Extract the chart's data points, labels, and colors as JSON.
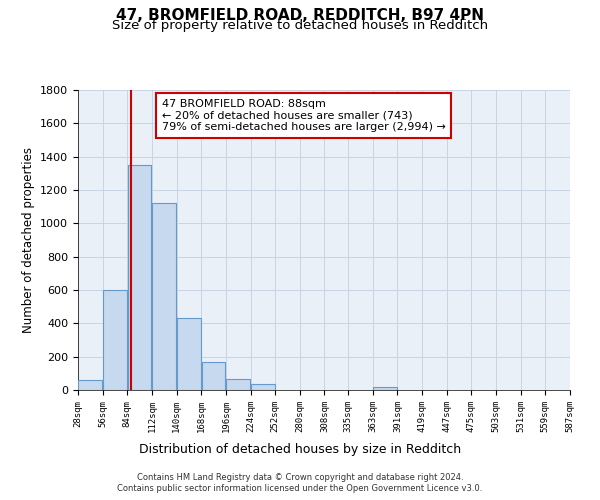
{
  "title": "47, BROMFIELD ROAD, REDDITCH, B97 4PN",
  "subtitle": "Size of property relative to detached houses in Redditch",
  "xlabel": "Distribution of detached houses by size in Redditch",
  "ylabel": "Number of detached properties",
  "bar_starts": [
    28,
    56,
    84,
    112,
    140,
    168,
    196,
    224,
    252,
    280,
    308,
    335,
    363,
    391,
    419,
    447,
    475,
    503,
    531,
    559
  ],
  "bar_heights": [
    60,
    600,
    1350,
    1120,
    430,
    170,
    65,
    35,
    0,
    0,
    0,
    0,
    20,
    0,
    0,
    0,
    0,
    0,
    0,
    0
  ],
  "bin_width": 28,
  "bar_color": "#c6d9ee",
  "bar_edge_color": "#6699cc",
  "property_line_x": 88,
  "property_line_color": "#cc0000",
  "ylim": [
    0,
    1800
  ],
  "yticks": [
    0,
    200,
    400,
    600,
    800,
    1000,
    1200,
    1400,
    1600,
    1800
  ],
  "x_tick_labels": [
    "28sqm",
    "56sqm",
    "84sqm",
    "112sqm",
    "140sqm",
    "168sqm",
    "196sqm",
    "224sqm",
    "252sqm",
    "280sqm",
    "308sqm",
    "335sqm",
    "363sqm",
    "391sqm",
    "419sqm",
    "447sqm",
    "475sqm",
    "503sqm",
    "531sqm",
    "559sqm",
    "587sqm"
  ],
  "annotation_title": "47 BROMFIELD ROAD: 88sqm",
  "annotation_line1": "← 20% of detached houses are smaller (743)",
  "annotation_line2": "79% of semi-detached houses are larger (2,994) →",
  "annotation_box_color": "#ffffff",
  "annotation_box_edge_color": "#cc0000",
  "footer_line1": "Contains HM Land Registry data © Crown copyright and database right 2024.",
  "footer_line2": "Contains public sector information licensed under the Open Government Licence v3.0.",
  "background_color": "#ffffff",
  "axes_background": "#eaf0f8",
  "grid_color": "#c8d4e4",
  "title_fontsize": 11,
  "subtitle_fontsize": 9.5
}
